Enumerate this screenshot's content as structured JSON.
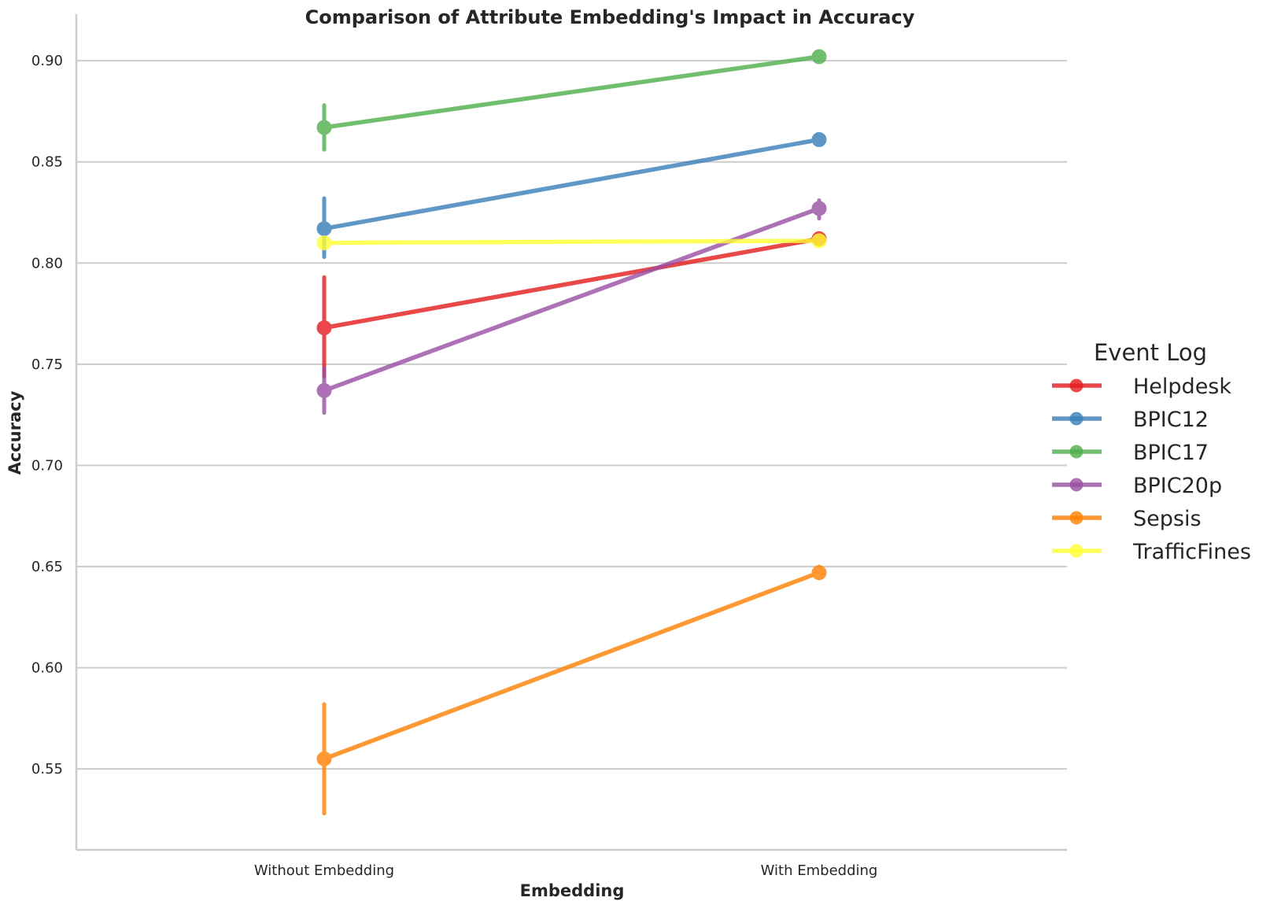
{
  "chart_data": {
    "type": "line",
    "title": "Comparison of Attribute Embedding's Impact in Accuracy",
    "xlabel": "Embedding",
    "ylabel": "Accuracy",
    "categories": [
      "Without Embedding",
      "With Embedding"
    ],
    "ylim": [
      0.51,
      0.923
    ],
    "yticks": [
      0.55,
      0.6,
      0.65,
      0.7,
      0.75,
      0.8,
      0.85,
      0.9
    ],
    "ytick_labels": [
      "0.55",
      "0.60",
      "0.65",
      "0.70",
      "0.75",
      "0.80",
      "0.85",
      "0.90"
    ],
    "grid": "horizontal",
    "legend": {
      "title": "Event Log",
      "placement": "right"
    },
    "series": [
      {
        "name": "Helpdesk",
        "color": "#e41a1c",
        "values": [
          0.768,
          0.812
        ],
        "error": [
          [
            0.744,
            0.793
          ],
          [
            0.811,
            0.813
          ]
        ]
      },
      {
        "name": "BPIC12",
        "color": "#377eb8",
        "values": [
          0.817,
          0.861
        ],
        "error": [
          [
            0.803,
            0.832
          ],
          [
            0.86,
            0.862
          ]
        ]
      },
      {
        "name": "BPIC17",
        "color": "#4daf4a",
        "values": [
          0.867,
          0.902
        ],
        "error": [
          [
            0.856,
            0.878
          ],
          [
            0.901,
            0.903
          ]
        ]
      },
      {
        "name": "BPIC20p",
        "color": "#984ea3",
        "values": [
          0.737,
          0.827
        ],
        "error": [
          [
            0.726,
            0.748
          ],
          [
            0.822,
            0.831
          ]
        ]
      },
      {
        "name": "Sepsis",
        "color": "#ff7f00",
        "values": [
          0.555,
          0.647
        ],
        "error": [
          [
            0.528,
            0.582
          ],
          [
            0.645,
            0.65
          ]
        ]
      },
      {
        "name": "TrafficFines",
        "color": "#ffff33",
        "values": [
          0.81,
          0.811
        ],
        "error": [
          [
            0.809,
            0.811
          ],
          [
            0.81,
            0.812
          ]
        ]
      }
    ]
  }
}
